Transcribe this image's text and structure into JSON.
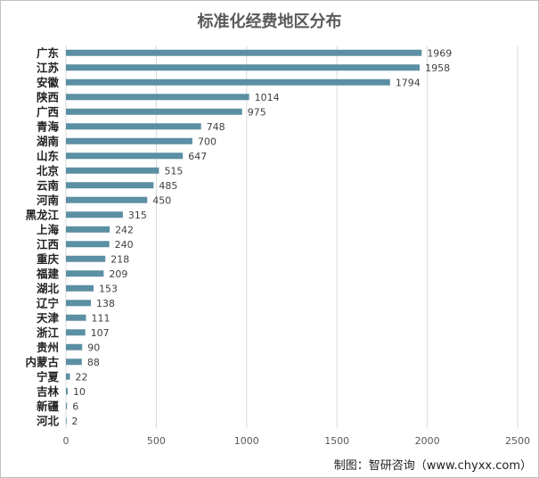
{
  "chart_data": {
    "type": "bar",
    "orientation": "horizontal",
    "title": "标准化经费地区分布",
    "categories": [
      "广东",
      "江苏",
      "安徽",
      "陕西",
      "广西",
      "青海",
      "湖南",
      "山东",
      "北京",
      "云南",
      "河南",
      "黑龙江",
      "上海",
      "江西",
      "重庆",
      "福建",
      "湖北",
      "辽宁",
      "天津",
      "浙江",
      "贵州",
      "内蒙古",
      "宁夏",
      "吉林",
      "新疆",
      "河北"
    ],
    "values": [
      1969,
      1958,
      1794,
      1014,
      975,
      748,
      700,
      647,
      515,
      485,
      450,
      315,
      242,
      240,
      218,
      209,
      153,
      138,
      111,
      107,
      90,
      88,
      22,
      10,
      6,
      2
    ],
    "xlim": [
      0,
      2500
    ],
    "xticks": [
      0,
      500,
      1000,
      1500,
      2000,
      2500
    ],
    "grid": true,
    "bar_color": "#5b8fa3",
    "xlabel": "",
    "ylabel": ""
  },
  "source": "制图：智研咨询（www.chyxx.com）"
}
